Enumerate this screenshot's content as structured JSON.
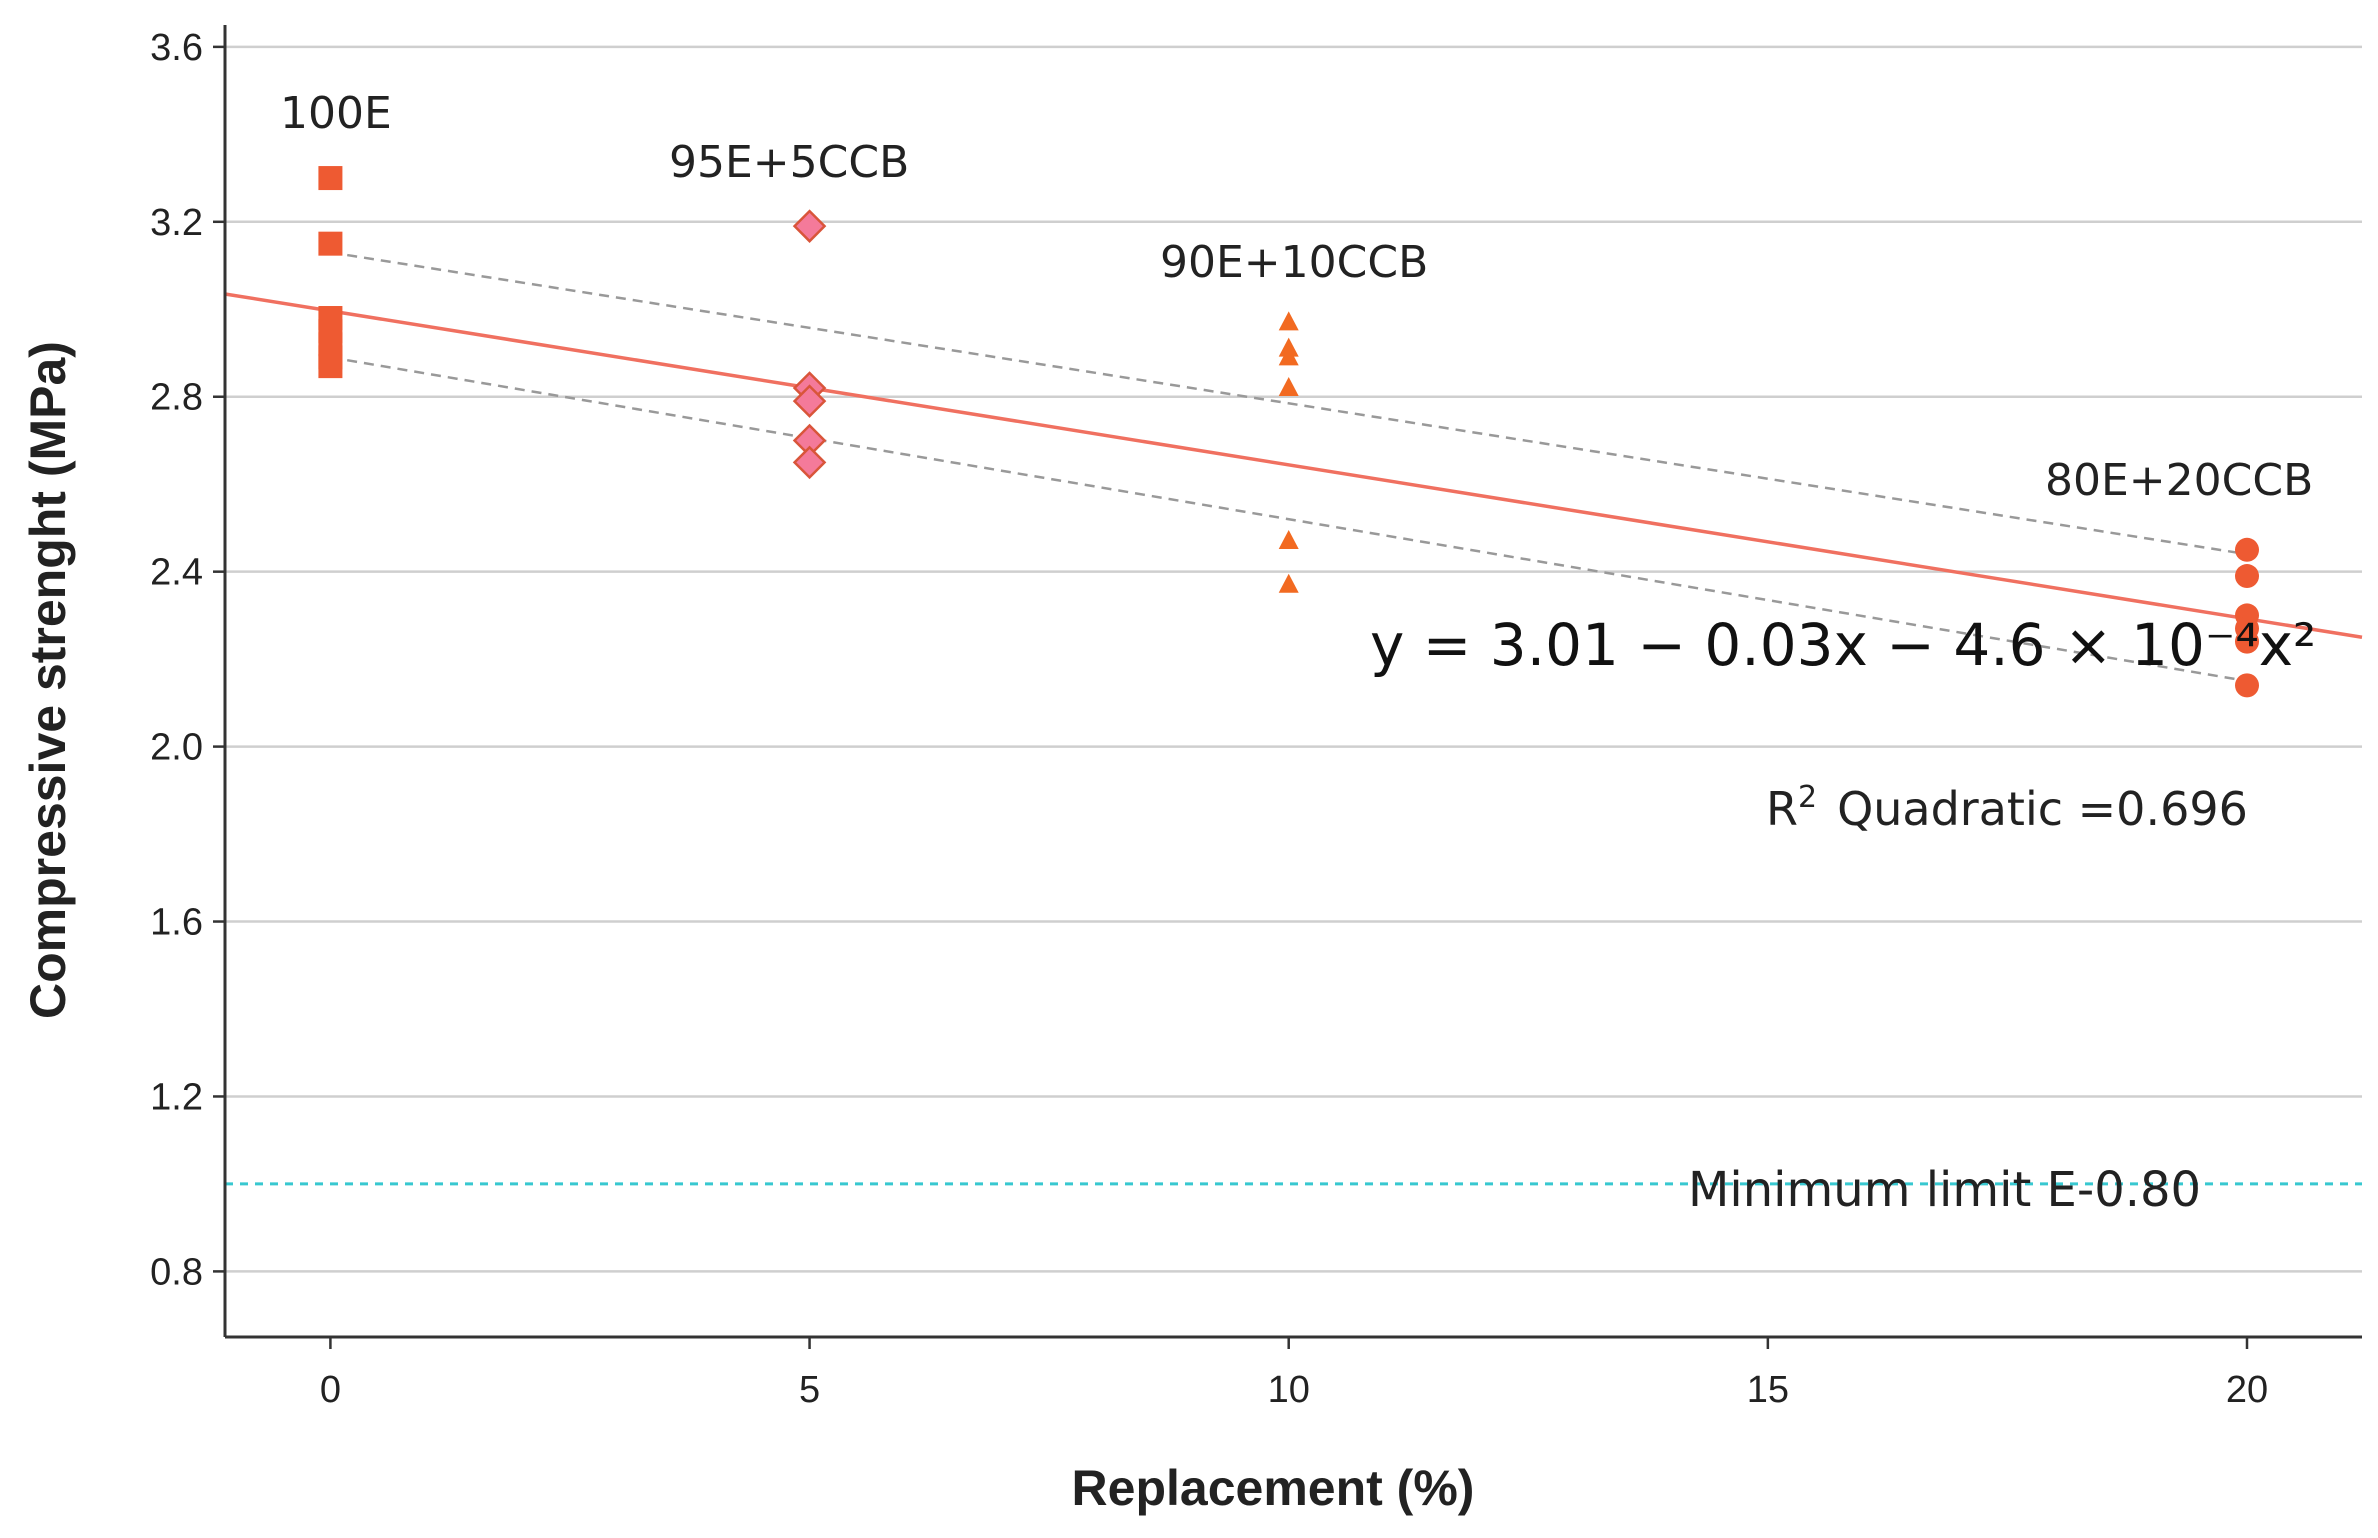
{
  "chart_data": {
    "type": "scatter",
    "xlabel": "Replacement (%)",
    "ylabel": "Compressive strenght (MPa)",
    "xlim": [
      -1.1,
      21.2
    ],
    "ylim": [
      0.65,
      3.65
    ],
    "x_ticks": [
      0,
      5,
      10,
      15,
      20
    ],
    "y_ticks": [
      0.8,
      1.2,
      1.6,
      2.0,
      2.4,
      2.8,
      3.2,
      3.6
    ],
    "x_tick_labels": [
      "0",
      "5",
      "10",
      "15",
      "20"
    ],
    "y_tick_labels": [
      "0.8",
      "1.2",
      "1.6",
      "2.0",
      "2.4",
      "2.8",
      "3.2",
      "3.6"
    ],
    "grid": "horizontal",
    "series": [
      {
        "name": "100E",
        "label": "100E",
        "marker": "square",
        "color": "#ee5a32",
        "x": 0,
        "values": [
          3.3,
          3.15,
          2.98,
          2.95,
          2.92,
          2.89,
          2.87
        ]
      },
      {
        "name": "95E+5CCB",
        "label": "95E+5CCB",
        "marker": "diamond",
        "color": "#f47a9a",
        "stroke": "#d9553a",
        "x": 5,
        "values": [
          3.19,
          2.82,
          2.79,
          2.7,
          2.65
        ]
      },
      {
        "name": "90E+10CCB",
        "label": "90E+10CCB",
        "marker": "triangle",
        "color": "#f26a21",
        "x": 10,
        "values": [
          2.97,
          2.91,
          2.89,
          2.82,
          2.47,
          2.37
        ]
      },
      {
        "name": "80E+20CCB",
        "label": "80E+20CCB",
        "marker": "circle",
        "color": "#ee5a32",
        "x": 20,
        "values": [
          2.45,
          2.39,
          2.3,
          2.27,
          2.24,
          2.14
        ]
      }
    ],
    "fit": {
      "equation": "y = 3.01 − 0.03x − 4.6 × 10⁻⁴x²",
      "r2_label": "Quadratic =0.696",
      "r2_prefix": "R",
      "r2_sup": "2",
      "line": {
        "x": [
          -1.1,
          21.2
        ],
        "y": [
          3.035,
          2.25
        ]
      },
      "color": "#f07060",
      "ci_upper": {
        "x": [
          0,
          20
        ],
        "y": [
          3.13,
          2.44
        ]
      },
      "ci_lower": {
        "x": [
          0,
          20
        ],
        "y": [
          2.89,
          2.15
        ]
      },
      "ci_color": "#999999"
    },
    "reference_line": {
      "label": "Minimum limit E-0.80",
      "y": 1.0,
      "color": "#38c8d0"
    }
  }
}
